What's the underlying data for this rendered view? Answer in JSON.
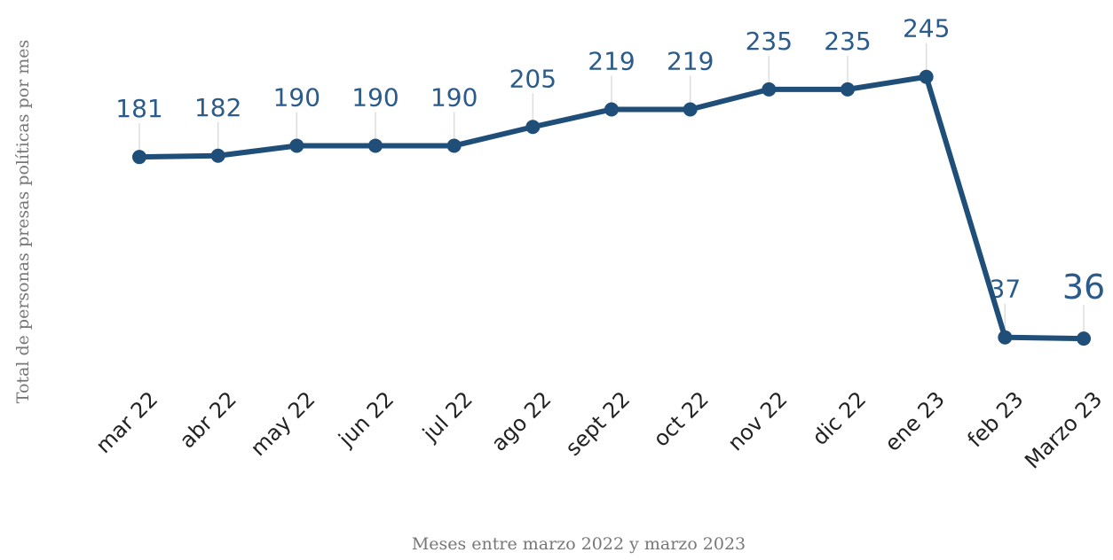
{
  "chart_data": {
    "type": "line",
    "x_label": "Meses entre marzo 2022 y marzo 2023",
    "y_label": "Total de personas presas políticas por mes",
    "categories": [
      "mar 22",
      "abr 22",
      "may 22",
      "jun 22",
      "jul 22",
      "ago 22",
      "sept 22",
      "oct 22",
      "nov 22",
      "dic 22",
      "ene 23",
      "feb 23",
      "Marzo 23"
    ],
    "series": [
      {
        "name": "Total de personas presas políticas",
        "color": "#1f4e79",
        "values": [
          181,
          182,
          190,
          190,
          190,
          205,
          219,
          219,
          235,
          235,
          245,
          37,
          36
        ]
      }
    ],
    "ylim": [
      0,
      300
    ],
    "grid": false
  }
}
